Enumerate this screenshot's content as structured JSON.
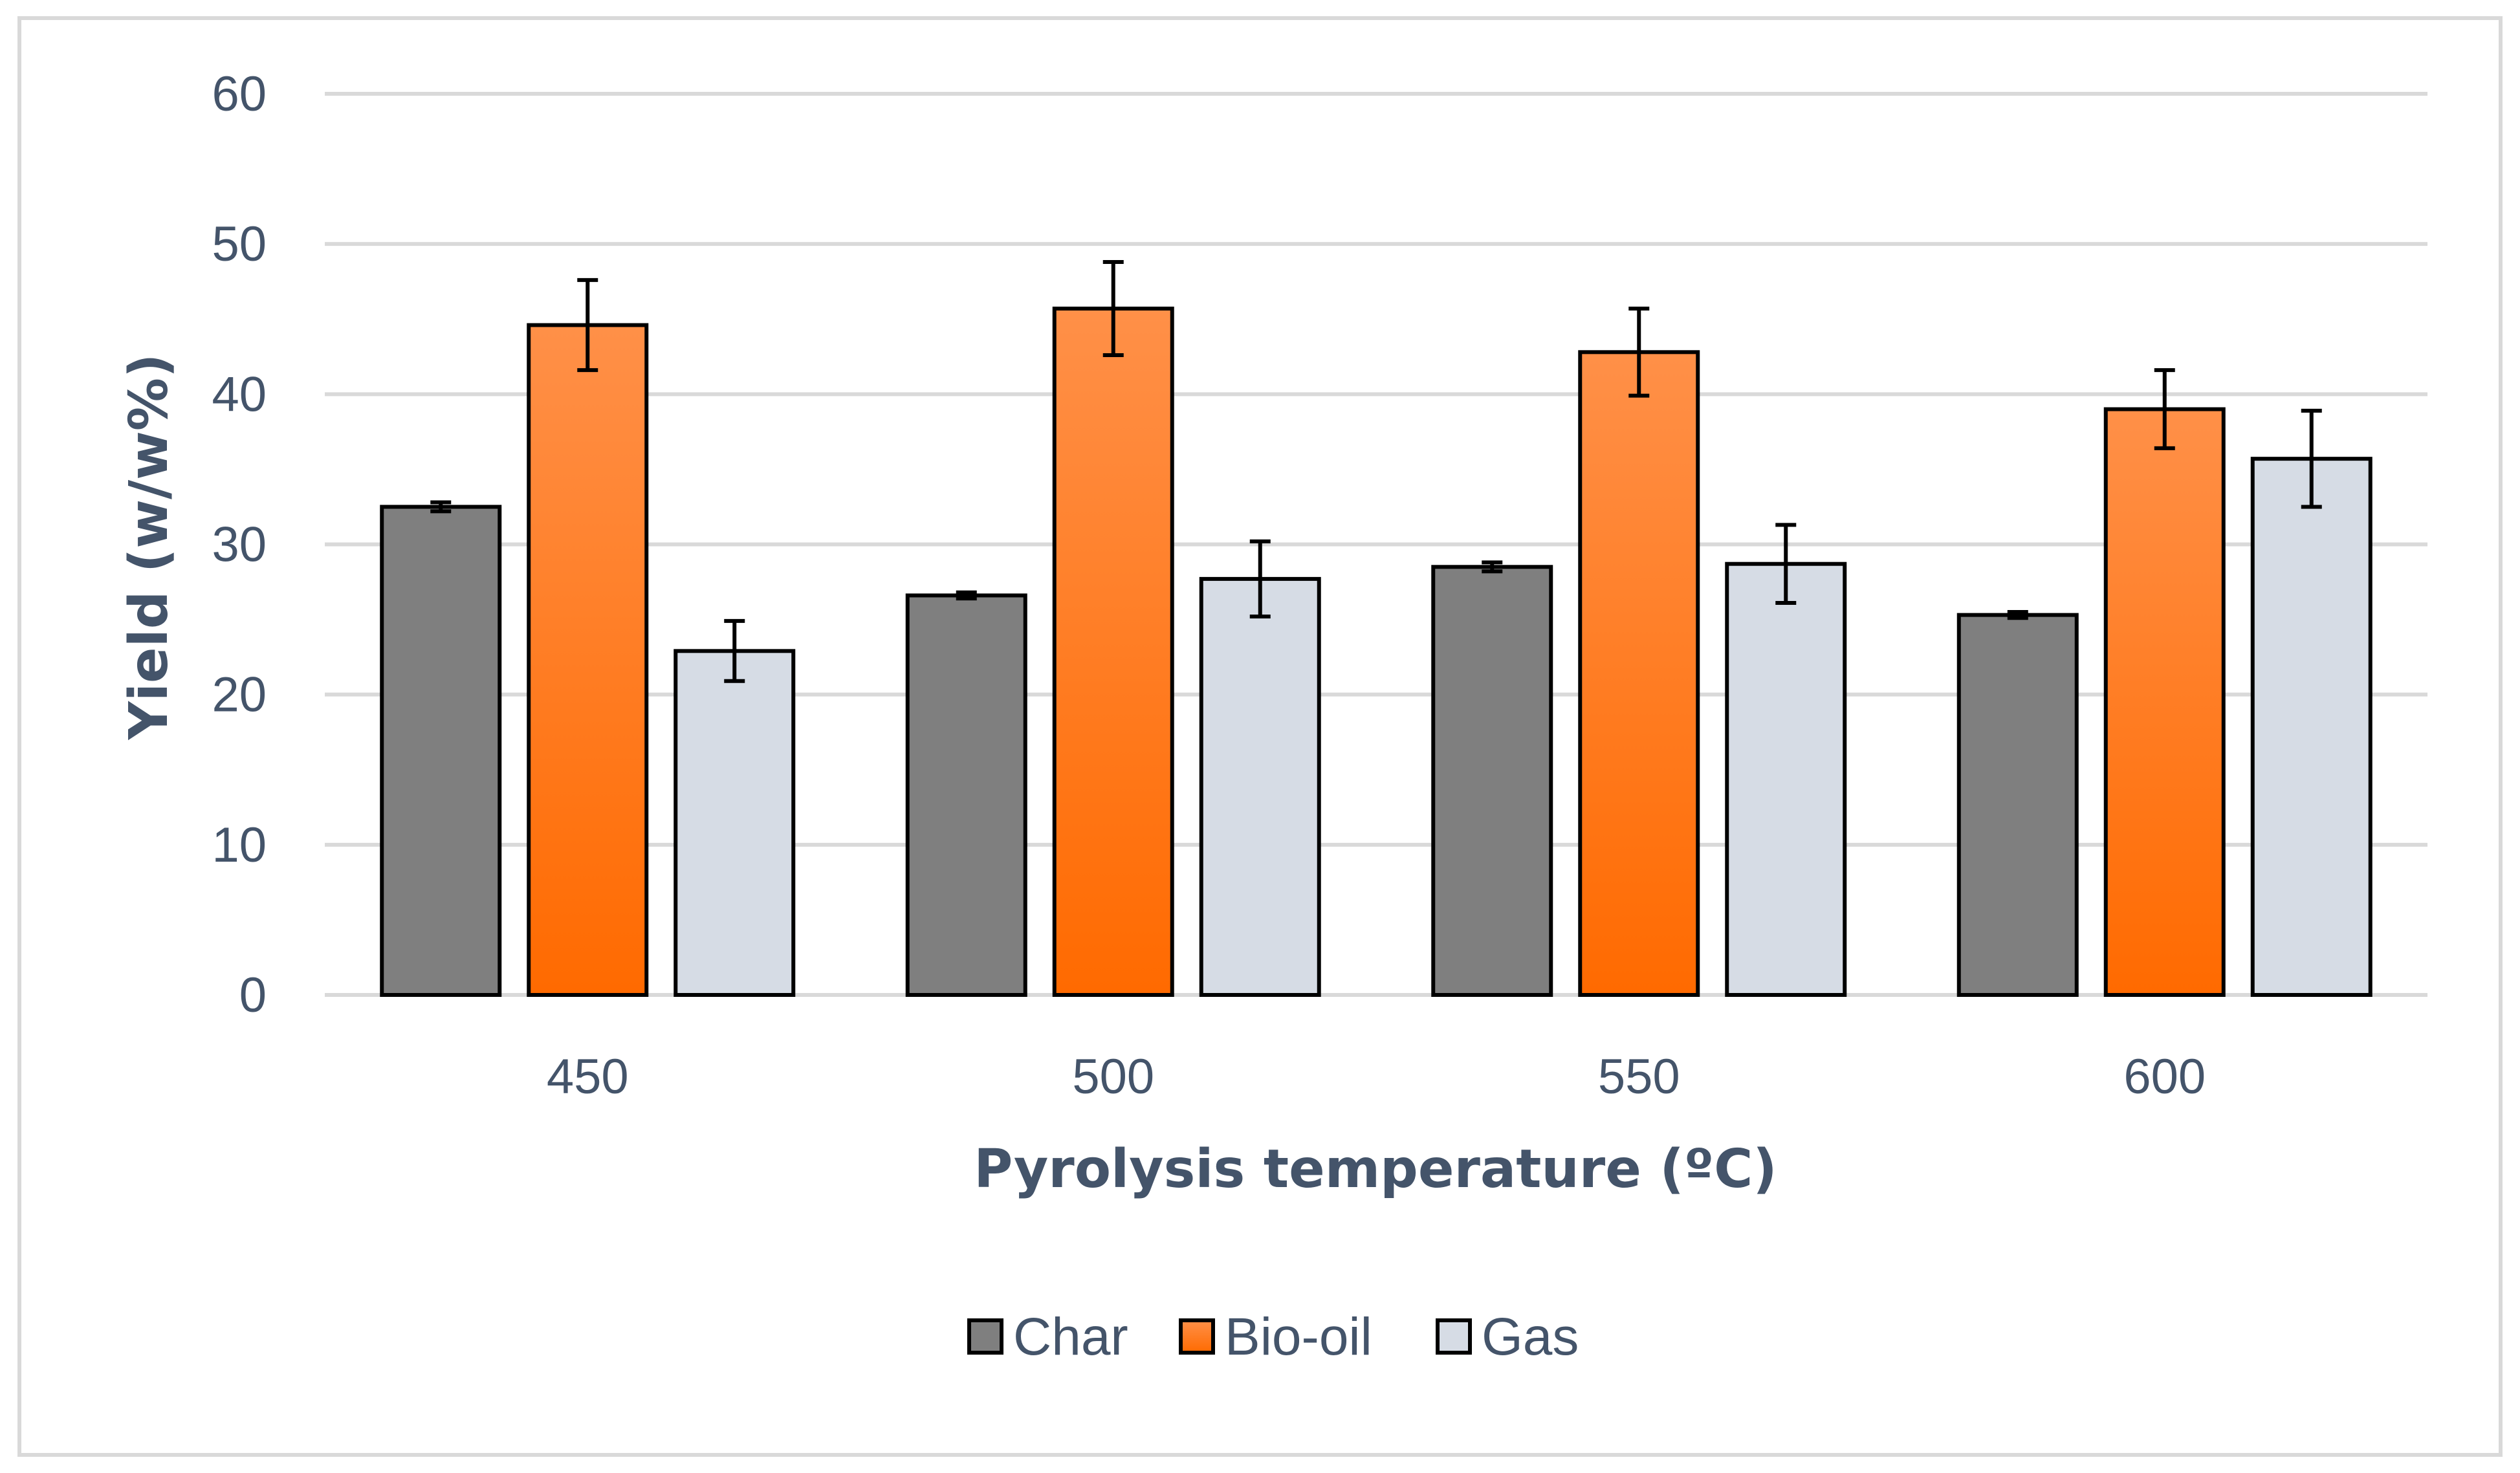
{
  "chart_data": {
    "type": "bar",
    "title": "",
    "xlabel": "Pyrolysis temperature (ºC)",
    "ylabel": "Yield (w/w%)",
    "ylim": [
      0,
      60
    ],
    "yticks": [
      "0",
      "10",
      "20",
      "30",
      "40",
      "50",
      "60"
    ],
    "grid": true,
    "legend_position": "bottom",
    "categories": [
      "450",
      "500",
      "550",
      "600"
    ],
    "series": [
      {
        "name": "Char",
        "color": "#7f7f7f",
        "values": [
          32.5,
          26.6,
          28.5,
          25.3
        ],
        "errors": [
          0.3,
          0.2,
          0.3,
          0.2
        ]
      },
      {
        "name": "Bio-oil",
        "color": "#ff6a00",
        "color_top": "#ff9048",
        "values": [
          44.6,
          45.7,
          42.8,
          39.0
        ],
        "errors": [
          3.0,
          3.1,
          2.9,
          2.6
        ]
      },
      {
        "name": "Gas",
        "color": "#d6dce5",
        "values": [
          22.9,
          27.7,
          28.7,
          35.7
        ],
        "errors": [
          2.0,
          2.5,
          2.6,
          3.2
        ]
      }
    ]
  },
  "colors": {
    "text": "#44546a",
    "grid": "#d9d9d9",
    "bar_outline": "#000000",
    "frame": "#d9d9d9"
  }
}
